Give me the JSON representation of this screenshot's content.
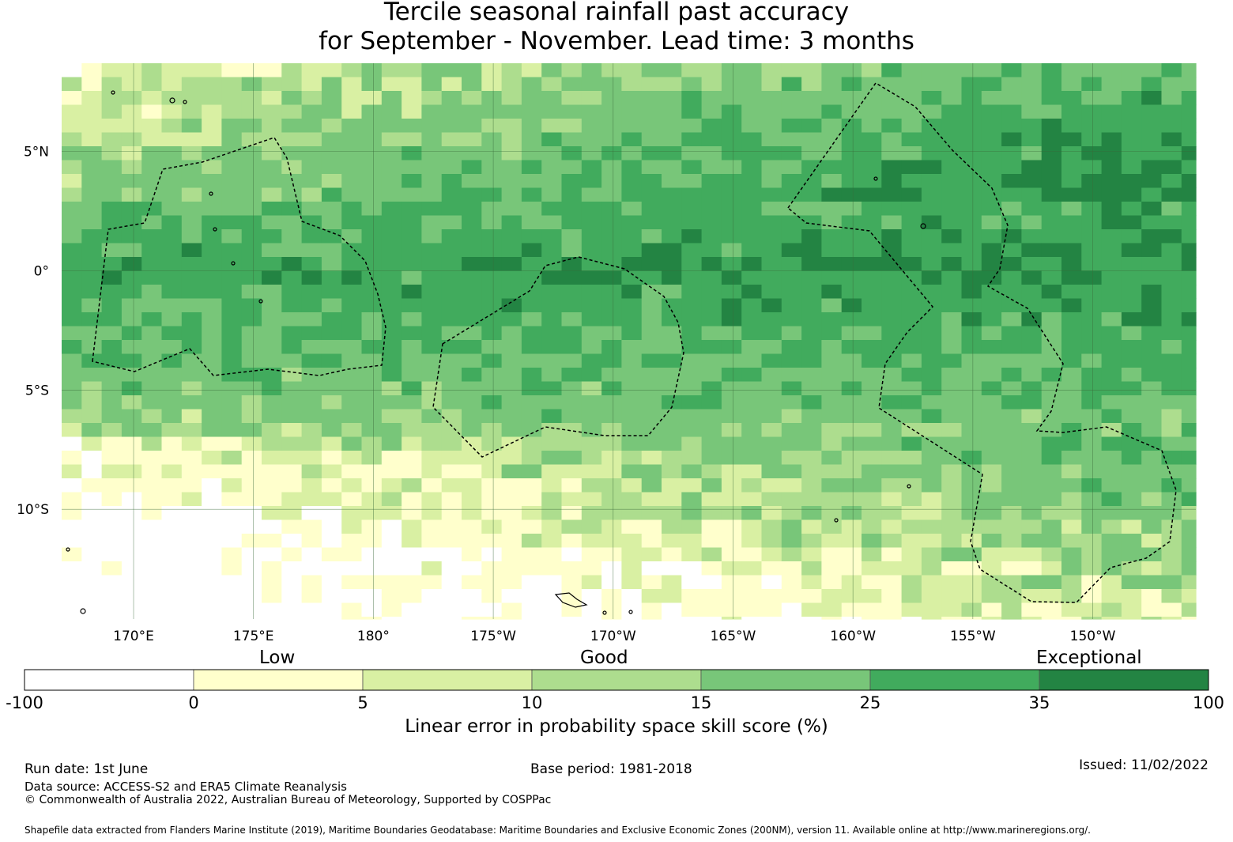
{
  "title": {
    "line1": "Tercile seasonal rainfall past accuracy",
    "line2": "for September - November. Lead time: 3 months"
  },
  "map": {
    "lon_range": [
      167,
      214.3
    ],
    "lat_range": [
      -14.6,
      8.7
    ],
    "lat_ticks": [
      {
        "value": 5,
        "label": "5°N"
      },
      {
        "value": 0,
        "label": "0°"
      },
      {
        "value": -5,
        "label": "5°S"
      },
      {
        "value": -10,
        "label": "10°S"
      }
    ],
    "lon_ticks": [
      {
        "value": 170,
        "label": "170°E"
      },
      {
        "value": 175,
        "label": "175°E"
      },
      {
        "value": 180,
        "label": "180°"
      },
      {
        "value": 185,
        "label": "175°W"
      },
      {
        "value": 190,
        "label": "170°W"
      },
      {
        "value": 195,
        "label": "165°W"
      },
      {
        "value": 200,
        "label": "160°W"
      },
      {
        "value": 205,
        "label": "155°W"
      },
      {
        "value": 210,
        "label": "150°W"
      }
    ],
    "grid": "on"
  },
  "legend": {
    "category_labels": {
      "low": "Low",
      "good": "Good",
      "exceptional": "Exceptional"
    },
    "boundaries": [
      "-100",
      "0",
      "5",
      "10",
      "15",
      "25",
      "35",
      "100"
    ],
    "colors": [
      "#ffffff",
      "#ffffcc",
      "#d9f0a3",
      "#addd8e",
      "#78c679",
      "#41ab5d",
      "#238443"
    ],
    "axis_label": "Linear error in probability space skill score (%)"
  },
  "footer": {
    "run_date": "Run date: 1st June",
    "base_period": "Base period: 1981-2018",
    "issued": "Issued: 11/02/2022",
    "data_source": "Data source: ACCESS-S2 and ERA5 Climate Reanalysis",
    "copyright": "© Commonwealth of Australia 2022, Australian Bureau of Meteorology, Supported by COSPPac",
    "shapefile": "Shapefile data extracted from Flanders Marine Institute (2019), Maritime Boundaries Geodatabase: Maritime Boundaries and Exclusive Economic Zones (200NM), version 11. Available online at http://www.marineregions.org/."
  }
}
